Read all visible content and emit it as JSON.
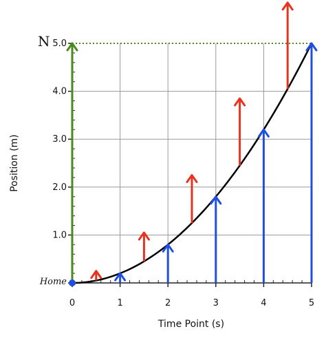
{
  "chart_data": {
    "type": "line",
    "xlabel": "Time Point (s)",
    "ylabel": "Position (m)",
    "xlim": [
      0,
      5
    ],
    "ylim": [
      0,
      5
    ],
    "x_ticks": [
      "0",
      "1",
      "2",
      "3",
      "4",
      "5"
    ],
    "y_ticks": [
      "1.0",
      "2.0",
      "3.0",
      "4.0",
      "5.0"
    ],
    "grid": true,
    "curve": {
      "equation": "y = 0.2 * x^2",
      "x_range": [
        0,
        5
      ]
    },
    "position_arrows": [
      {
        "t": 1,
        "y": 0.2
      },
      {
        "t": 2,
        "y": 0.8
      },
      {
        "t": 3,
        "y": 1.8
      },
      {
        "t": 4,
        "y": 3.2
      },
      {
        "t": 5,
        "y": 5.0
      }
    ],
    "displacement_arrows": [
      {
        "t": 0.5,
        "y_from": 0.05,
        "y_to": 0.25
      },
      {
        "t": 1.5,
        "y_from": 0.45,
        "y_to": 1.05
      },
      {
        "t": 2.5,
        "y_from": 1.25,
        "y_to": 2.25
      },
      {
        "t": 3.5,
        "y_from": 2.45,
        "y_to": 3.85
      },
      {
        "t": 4.5,
        "y_from": 4.05,
        "y_to": 5.85
      }
    ],
    "home_label": "Home",
    "north_label": "N",
    "colors": {
      "position": "#1f4fe0",
      "displacement": "#e8321e",
      "north": "#4a8a1c",
      "curve": "#000000",
      "grid": "#999999",
      "home_dot": "#1f4fe0"
    }
  }
}
